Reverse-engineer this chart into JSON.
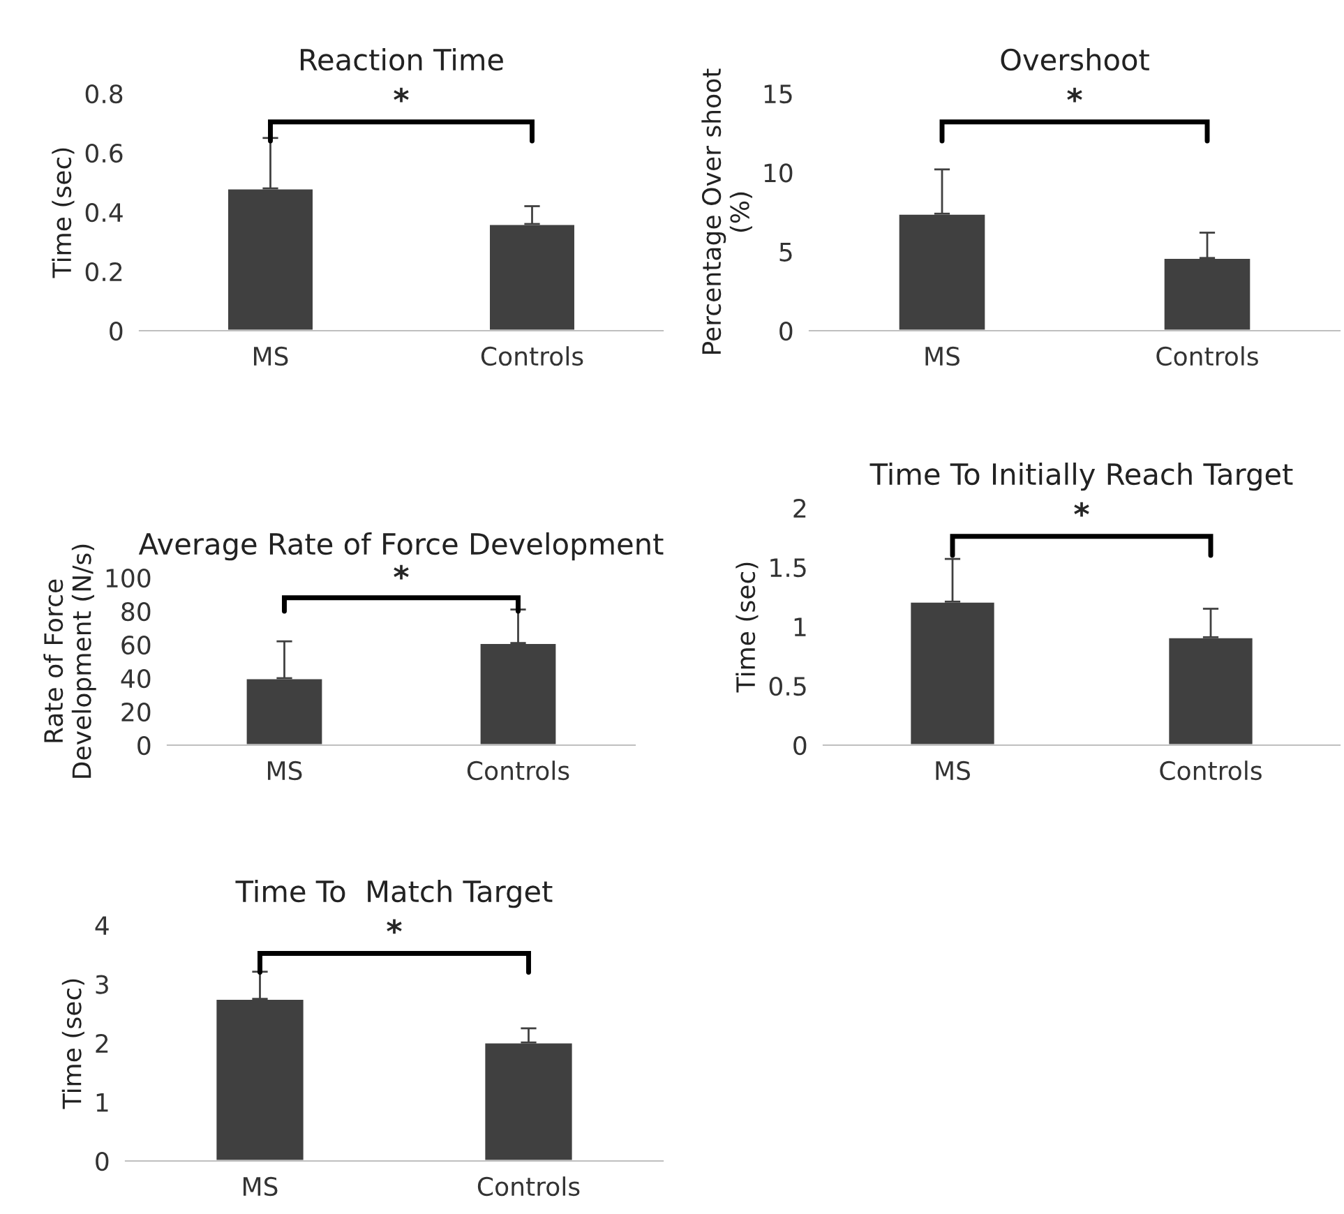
{
  "chart_data": [
    {
      "type": "bar",
      "title": "Reaction Time",
      "ylabel": "Time (sec)",
      "categories": [
        "MS",
        "Controls"
      ],
      "values": [
        0.48,
        0.36
      ],
      "errors": [
        [
          0.48,
          0.65
        ],
        [
          0.36,
          0.42
        ]
      ],
      "color": "#404040",
      "ylim": [
        0,
        0.8
      ],
      "yticks": [
        {
          "value": 0,
          "label": "0"
        },
        0.2,
        0.4,
        0.6,
        0.8
      ],
      "grid": false,
      "annotations": [
        "*"
      ]
    },
    {
      "type": "bar",
      "title": "Overshoot",
      "ylabel": "Percentage Over shoot\n(%)",
      "categories": [
        "MS",
        "Controls"
      ],
      "values": [
        7.4,
        4.6
      ],
      "errors": [
        [
          7.4,
          10.2
        ],
        [
          4.6,
          6.2
        ]
      ],
      "color": "#404040",
      "ylim": [
        0,
        15
      ],
      "yticks": [
        0,
        5,
        10,
        15
      ],
      "grid": false,
      "annotations": [
        "*"
      ]
    },
    {
      "type": "bar",
      "title": "Average Rate of Force Development",
      "ylabel": "Rate of Force\nDevelopment (N/s)",
      "categories": [
        "MS",
        "Controls"
      ],
      "values": [
        40,
        61
      ],
      "errors": [
        [
          40,
          62
        ],
        [
          61,
          81
        ]
      ],
      "color": "#404040",
      "ylim": [
        0,
        100
      ],
      "yticks": [
        0,
        20,
        40,
        60,
        80,
        100
      ],
      "grid": false,
      "annotations": [
        "*"
      ]
    },
    {
      "type": "bar",
      "title": "Time To Initially Reach Target",
      "ylabel": "Time (sec)",
      "categories": [
        "MS",
        "Controls"
      ],
      "values": [
        1.21,
        0.91
      ],
      "errors": [
        [
          1.21,
          1.57
        ],
        [
          0.91,
          1.15
        ]
      ],
      "color": "#404040",
      "ylim": [
        0,
        2
      ],
      "yticks": [
        0,
        0.5,
        1,
        1.5,
        2
      ],
      "grid": false,
      "annotations": [
        "*"
      ]
    },
    {
      "type": "bar",
      "title": "Time To  Match Target",
      "ylabel": "Time (sec)",
      "categories": [
        "MS",
        "Controls"
      ],
      "values": [
        2.75,
        2.01
      ],
      "errors": [
        [
          2.75,
          3.21
        ],
        [
          2.01,
          2.25
        ]
      ],
      "color": "#404040",
      "ylim": [
        0,
        4
      ],
      "yticks": [
        0,
        1,
        2,
        3,
        4
      ],
      "grid": false,
      "annotations": [
        "*"
      ]
    }
  ]
}
